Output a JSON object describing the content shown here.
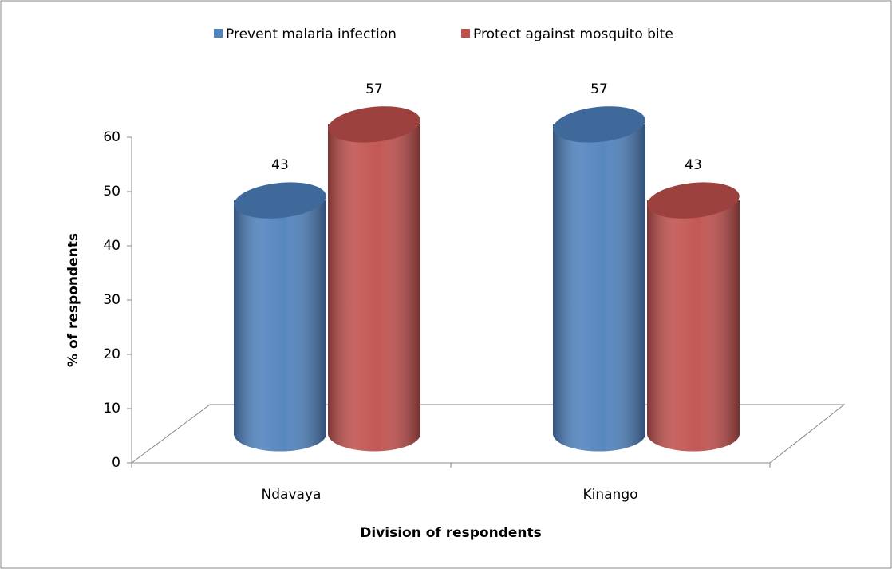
{
  "chart_data": {
    "type": "bar3d",
    "x_label": "Division of respondents",
    "y_label": "% of respondents",
    "categories": [
      "Ndavaya",
      "Kinango"
    ],
    "series": [
      {
        "name": "Prevent malaria infection",
        "color": "#4f81bd",
        "values": [
          43,
          57
        ]
      },
      {
        "name": "Protect against mosquito bite",
        "color": "#c0504d",
        "values": [
          57,
          43
        ]
      }
    ],
    "ylim": [
      0,
      60
    ],
    "yticks": [
      0,
      10,
      20,
      30,
      40,
      50,
      60
    ],
    "legend": "top"
  }
}
